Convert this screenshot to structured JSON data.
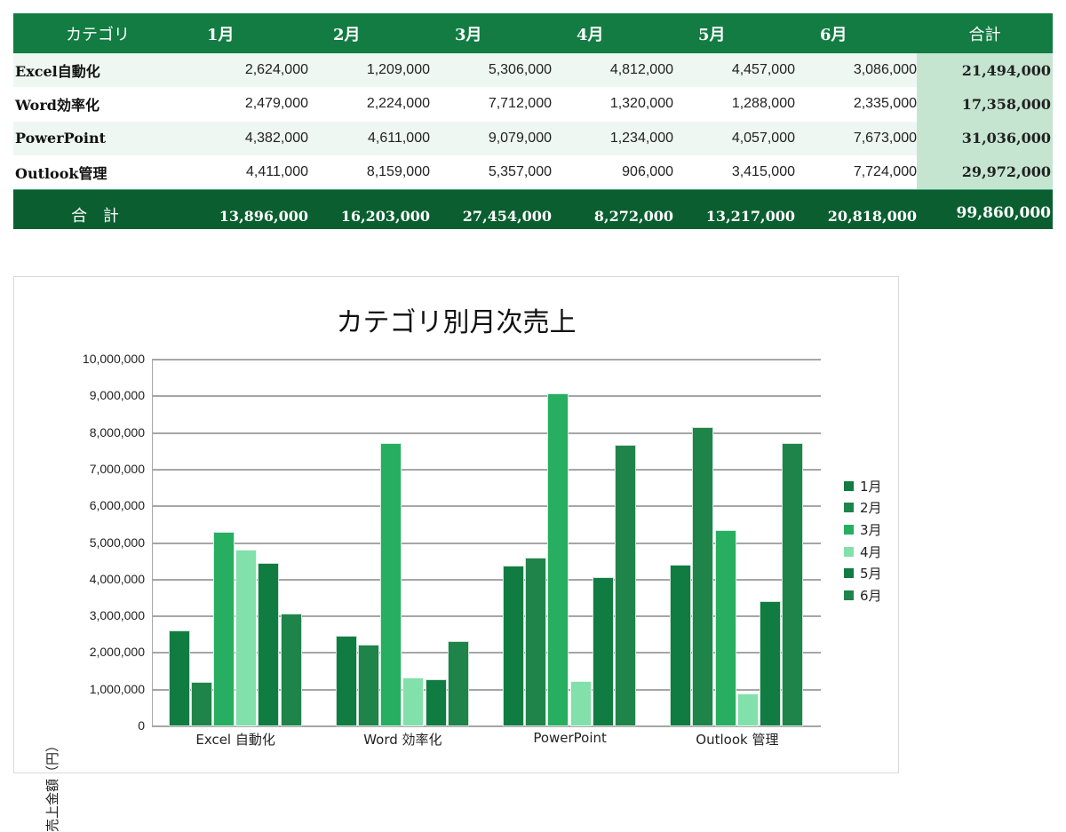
{
  "table": {
    "headers": [
      "カテゴリ",
      "1月",
      "2月",
      "3月",
      "4月",
      "5月",
      "6月",
      "合計"
    ],
    "rows": [
      {
        "category": "Excel自動化",
        "values": [
          "2,624,000",
          "1,209,000",
          "5,306,000",
          "4,812,000",
          "4,457,000",
          "3,086,000"
        ],
        "total": "21,494,000"
      },
      {
        "category": "Word効率化",
        "values": [
          "2,479,000",
          "2,224,000",
          "7,712,000",
          "1,320,000",
          "1,288,000",
          "2,335,000"
        ],
        "total": "17,358,000"
      },
      {
        "category": "PowerPoint",
        "values": [
          "4,382,000",
          "4,611,000",
          "9,079,000",
          "1,234,000",
          "4,057,000",
          "7,673,000"
        ],
        "total": "31,036,000"
      },
      {
        "category": "Outlook管理",
        "values": [
          "4,411,000",
          "8,159,000",
          "5,357,000",
          "906,000",
          "3,415,000",
          "7,724,000"
        ],
        "total": "29,972,000"
      }
    ],
    "total_row": {
      "label": "合 計",
      "values": [
        "13,896,000",
        "16,203,000",
        "27,454,000",
        "8,272,000",
        "13,217,000",
        "20,818,000"
      ],
      "grand_total": "99,860,000"
    }
  },
  "colors": {
    "header_bg": "#127C42",
    "total_bg": "#0B5E30",
    "total_col_bg": "#C5E5D1",
    "alt_row_bg": "#EEF7F1",
    "series": [
      "#107C41",
      "#1E8449",
      "#27AE60",
      "#82E0AA",
      "#107C41",
      "#1E8449"
    ]
  },
  "chart_data": {
    "type": "bar",
    "title": "カテゴリ別月次売上",
    "xlabel": "",
    "ylabel": "売上金額（円）",
    "ylim": [
      0,
      10000000
    ],
    "yticks": [
      "0",
      "1,000,000",
      "2,000,000",
      "3,000,000",
      "4,000,000",
      "5,000,000",
      "6,000,000",
      "7,000,000",
      "8,000,000",
      "9,000,000",
      "10,000,000"
    ],
    "grid": true,
    "legend_position": "right",
    "categories": [
      "Excel 自動化",
      "Word 効率化",
      "PowerPoint",
      "Outlook 管理"
    ],
    "series": [
      {
        "name": "1月",
        "values": [
          2624000,
          2479000,
          4382000,
          4411000
        ]
      },
      {
        "name": "2月",
        "values": [
          1209000,
          2224000,
          4611000,
          8159000
        ]
      },
      {
        "name": "3月",
        "values": [
          5306000,
          7712000,
          9079000,
          5357000
        ]
      },
      {
        "name": "4月",
        "values": [
          4812000,
          1320000,
          1234000,
          906000
        ]
      },
      {
        "name": "5月",
        "values": [
          4457000,
          1288000,
          4057000,
          3415000
        ]
      },
      {
        "name": "6月",
        "values": [
          3086000,
          2335000,
          7673000,
          7724000
        ]
      }
    ],
    "legend": [
      "1月",
      "2月",
      "3月",
      "4月",
      "5月",
      "6月"
    ]
  }
}
